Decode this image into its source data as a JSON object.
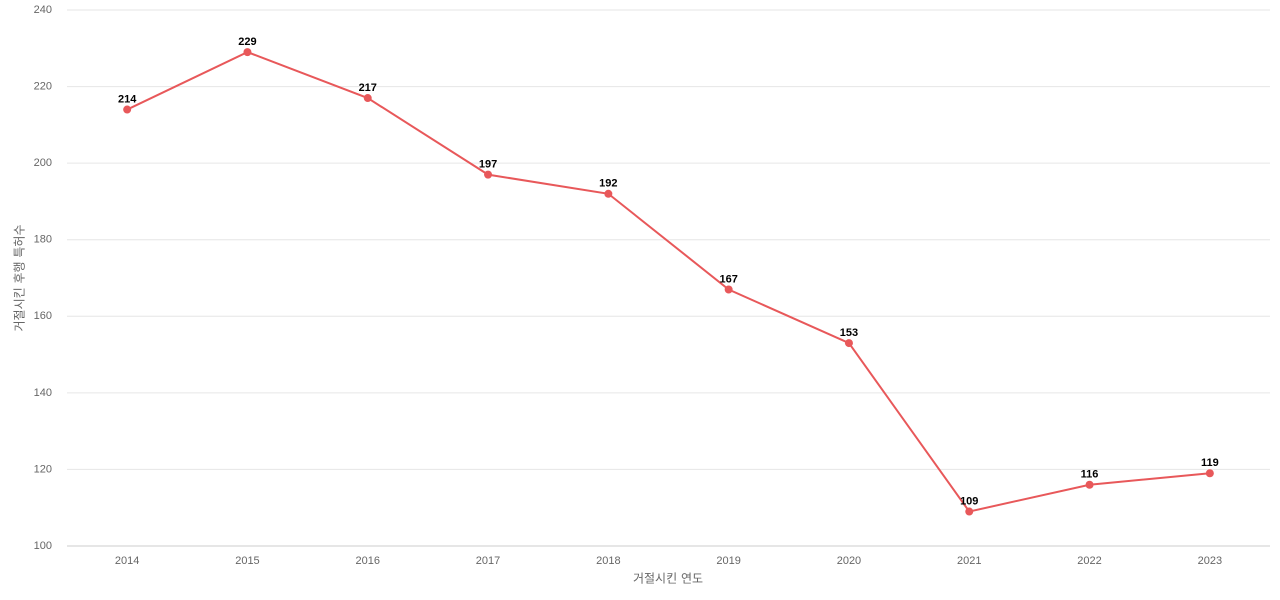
{
  "chart_data": {
    "type": "line",
    "x_label": "거절시킨 연도",
    "y_label": "거절시킨 후행 특허수",
    "categories": [
      "2014",
      "2015",
      "2016",
      "2017",
      "2018",
      "2019",
      "2020",
      "2021",
      "2022",
      "2023"
    ],
    "series": [
      {
        "color": "#e8585a",
        "values": [
          214,
          229,
          217,
          197,
          192,
          167,
          153,
          109,
          116,
          119
        ]
      }
    ],
    "ylim": [
      100,
      240
    ],
    "yticks": [
      100,
      120,
      140,
      160,
      180,
      200,
      220,
      240
    ],
    "grid": true
  }
}
